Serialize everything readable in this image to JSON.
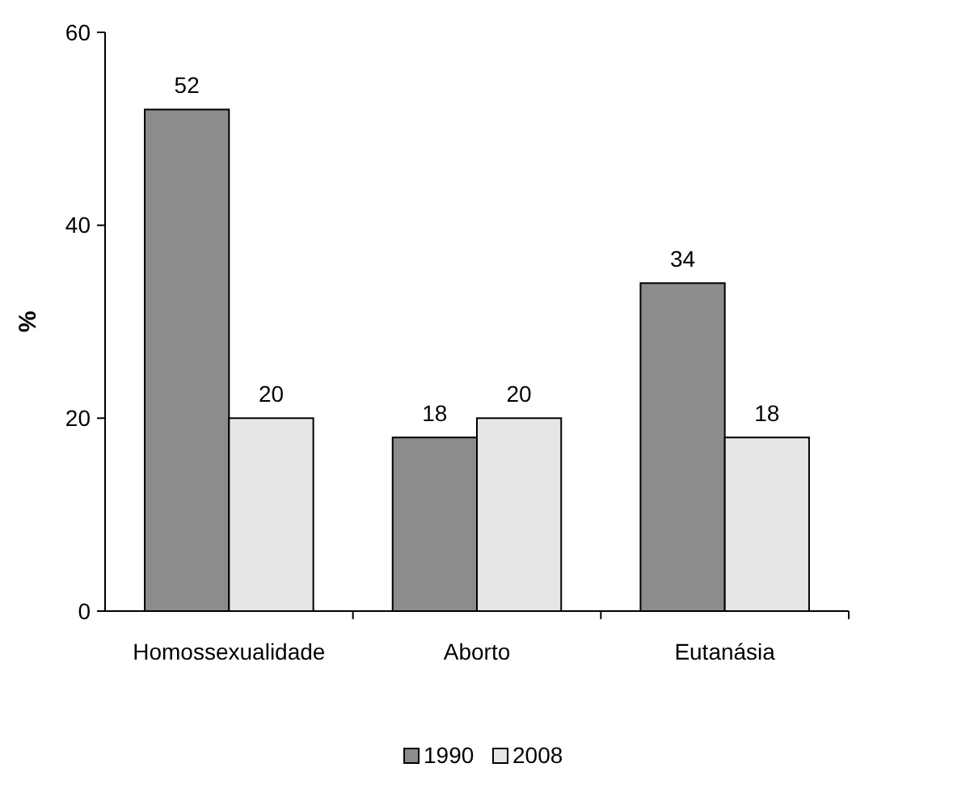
{
  "chart_data": {
    "type": "bar",
    "ylabel": "%",
    "categories": [
      "Homossexualidade",
      "Aborto",
      "Eutanásia"
    ],
    "series": [
      {
        "name": "1990",
        "color": "#8c8c8c",
        "values": [
          52,
          18,
          34
        ]
      },
      {
        "name": "2008",
        "color": "#e6e6e6",
        "values": [
          20,
          20,
          18
        ]
      }
    ],
    "ylim": [
      0,
      60
    ],
    "yticks": [
      0,
      20,
      40,
      60
    ],
    "grid": false,
    "legend": "bottom",
    "data_labels": true
  }
}
